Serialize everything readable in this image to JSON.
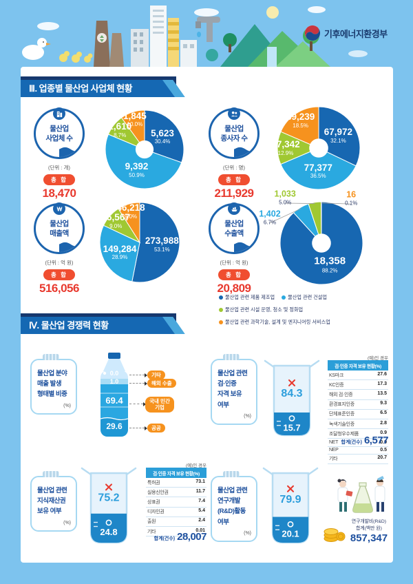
{
  "header": {
    "ministry": "기후에너지환경부"
  },
  "sections": [
    {
      "title": "Ⅲ. 업종별 물산업 사업체 현황"
    },
    {
      "title": "Ⅳ. 물산업 경쟁력 현황"
    }
  ],
  "palette": {
    "dark_blue": "#1767b1",
    "light_blue": "#2aa9e0",
    "green": "#a0c832",
    "orange": "#f6921e",
    "red": "#e8392e",
    "navy": "#1c4f9c"
  },
  "legend": [
    {
      "label": "물산업 관련 제품 제조업",
      "color": "#1767b1"
    },
    {
      "label": "물산업 관련 건설업",
      "color": "#2aa9e0"
    },
    {
      "label": "물산업 관련 시설 운영, 청소 및 정화업",
      "color": "#a0c832"
    },
    {
      "label": "물산업 관련 과학기술, 설계 및 엔지니어링 서비스업",
      "color": "#f6921e"
    }
  ],
  "chart_data": [
    {
      "type": "pie",
      "badge": {
        "title": "물산업\n사업체 수",
        "icon": "building-icon"
      },
      "unit": "(단위 : 개)",
      "total_label": "총 합",
      "total": "18,470",
      "hole": true,
      "slices": [
        {
          "label": "물산업 관련 제품 제조업",
          "value": "5,623",
          "pct": 30.4,
          "color": "#1767b1"
        },
        {
          "label": "물산업 관련 건설업",
          "value": "9,392",
          "pct": 50.9,
          "color": "#2aa9e0"
        },
        {
          "label": "물산업 관련 시설 운영, 청소 및 정화업",
          "value": "1,610",
          "pct": 8.7,
          "color": "#a0c832"
        },
        {
          "label": "물산업 관련 과학기술, 설계 및 엔지니어링 서비스업",
          "value": "1,845",
          "pct": 10.0,
          "color": "#f6921e"
        }
      ]
    },
    {
      "type": "pie",
      "badge": {
        "title": "물산업\n종사자 수",
        "icon": "people-icon"
      },
      "unit": "(단위 : 명)",
      "total_label": "총 합",
      "total": "211,929",
      "hole": true,
      "slices": [
        {
          "label": "물산업 관련 제품 제조업",
          "value": "67,972",
          "pct": 32.1,
          "color": "#1767b1"
        },
        {
          "label": "물산업 관련 건설업",
          "value": "77,377",
          "pct": 36.5,
          "color": "#2aa9e0"
        },
        {
          "label": "물산업 관련 시설 운영, 청소 및 정화업",
          "value": "27,342",
          "pct": 12.9,
          "color": "#a0c832"
        },
        {
          "label": "물산업 관련 과학기술, 설계 및 엔지니어링 서비스업",
          "value": "39,239",
          "pct": 18.5,
          "color": "#f6921e"
        }
      ]
    },
    {
      "type": "pie",
      "badge": {
        "title": "물산업\n매출액",
        "icon": "won-icon"
      },
      "unit": "(단위 : 억 원)",
      "total_label": "총 합",
      "total": "516,056",
      "hole": false,
      "slices": [
        {
          "label": "물산업 관련 제품 제조업",
          "value": "273,988",
          "pct": 53.1,
          "color": "#1767b1"
        },
        {
          "label": "물산업 관련 건설업",
          "value": "149,284",
          "pct": 28.9,
          "color": "#2aa9e0"
        },
        {
          "label": "물산업 관련 시설 운영, 청소 및 정화업",
          "value": "46,567",
          "pct": 9.0,
          "color": "#a0c832"
        },
        {
          "label": "물산업 관련 과학기술, 설계 및 엔지니어링 서비스업",
          "value": "46,218",
          "pct": 9.0,
          "color": "#f6921e"
        }
      ]
    },
    {
      "type": "pie",
      "badge": {
        "title": "물산업\n수출액",
        "icon": "ship-icon"
      },
      "unit": "(단위 : 억 원)",
      "total_label": "총 합",
      "total": "20,809",
      "hole": true,
      "slices": [
        {
          "label": "물산업 관련 제품 제조업",
          "value": "18,358",
          "pct": 88.2,
          "color": "#1767b1"
        },
        {
          "label": "물산업 관련 건설업",
          "value": "1,402",
          "pct": 6.7,
          "color": "#2aa9e0",
          "lx": -1.25,
          "ly": -0.62
        },
        {
          "label": "물산업 관련 시설 운영, 청소 및 정화업",
          "value": "1,033",
          "pct": 5.0,
          "color": "#a0c832",
          "lx": -0.88,
          "ly": -1.1
        },
        {
          "label": "물산업 관련 과학기술, 설계 및 엔지니어링 서비스업",
          "value": "16",
          "pct": 0.1,
          "color": "#f6921e",
          "lx": 0.72,
          "ly": -1.08
        }
      ]
    },
    {
      "type": "bar",
      "title": "물산업 분야\n매출 발생\n형태별 비중",
      "unit": "(%)",
      "segments": [
        {
          "label": "기타",
          "pct": 0.0
        },
        {
          "label": "해외 수출",
          "pct": 1.0
        },
        {
          "label": "국내 민간기업",
          "pct": 69.4
        },
        {
          "label": "공공",
          "pct": 29.6
        }
      ]
    },
    {
      "type": "beaker",
      "title": "물산업 관련\n검·인증\n자격 보유\n여부",
      "unit": "(%)",
      "no_pct": 84.3,
      "yes_pct": 15.7,
      "note": "(예)인 경우",
      "table": {
        "header": "검·인증 자격 보유 현황(%)",
        "rows": [
          [
            "KS마크",
            "27.6"
          ],
          [
            "KC인증",
            "17.3"
          ],
          [
            "해외 검·인증",
            "13.5"
          ],
          [
            "환경표지인증",
            "9.3"
          ],
          [
            "단체표준인증",
            "6.5"
          ],
          [
            "녹색기술인증",
            "2.8"
          ],
          [
            "조달청우수제품",
            "0.9"
          ],
          [
            "NET",
            "0.9"
          ],
          [
            "NEP",
            "0.5"
          ],
          [
            "기타",
            "20.7"
          ]
        ],
        "total_label": "합계(건수)",
        "total": "6,577"
      }
    },
    {
      "type": "beaker",
      "title": "물산업 관련\n지식재산권\n보유 여부",
      "unit": "(%)",
      "no_pct": 75.2,
      "yes_pct": 24.8,
      "note": "(예)인 경우",
      "table": {
        "header": "검·인증 자격 보유 현황(%)",
        "rows": [
          [
            "특허권",
            "73.1"
          ],
          [
            "실용신안권",
            "11.7"
          ],
          [
            "상표권",
            "7.4"
          ],
          [
            "디자인권",
            "5.4"
          ],
          [
            "출원",
            "2.4"
          ],
          [
            "기타",
            "0.01"
          ]
        ],
        "total_label": "합계(건수)",
        "total": "28,007"
      }
    },
    {
      "type": "beaker",
      "title": "물산업 관련\n연구개발\n(R&D)활동\n여부",
      "unit": "(%)",
      "no_pct": 79.9,
      "yes_pct": 20.1,
      "rnd": {
        "caption": "연구개발비(R&D)\n합계(백만 원)",
        "value": "857,347"
      }
    }
  ]
}
